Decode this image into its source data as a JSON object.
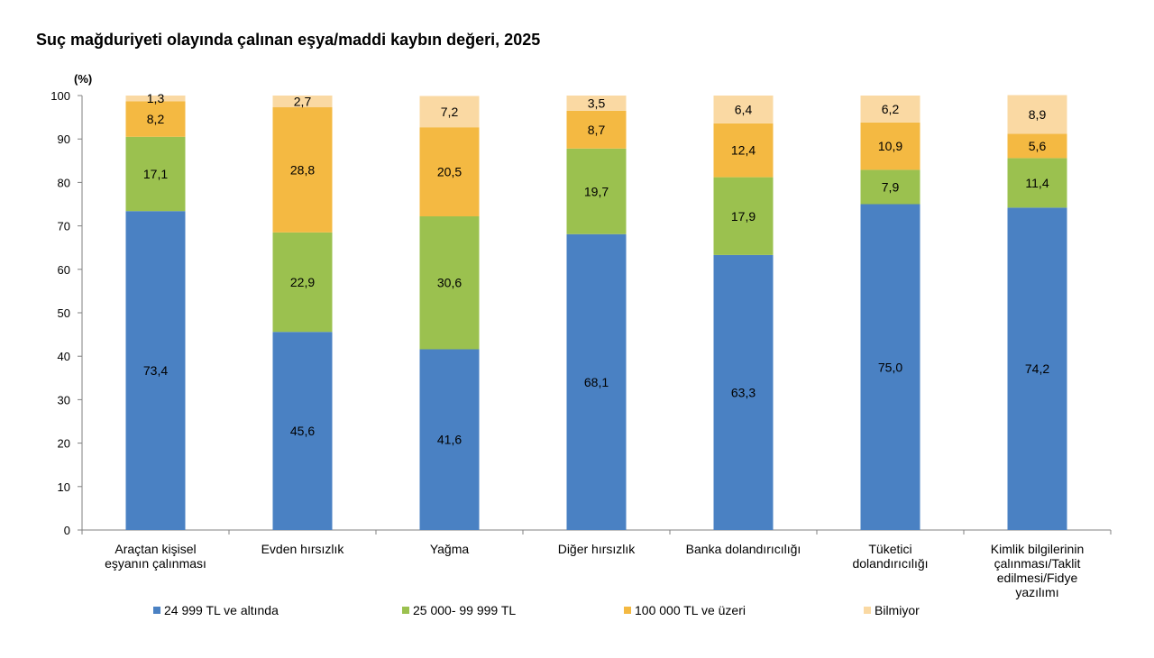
{
  "title": "Suç mağduriyeti olayında çalınan eşya/maddi kaybın değeri, 2025",
  "chart_data": {
    "type": "bar",
    "stacked": true,
    "title": "Suç mağduriyeti olayında çalınan eşya/maddi kaybın değeri, 2025",
    "ylabel": "(%)",
    "ylim": [
      0,
      100
    ],
    "yticks": [
      0,
      10,
      20,
      30,
      40,
      50,
      60,
      70,
      80,
      90,
      100
    ],
    "grid": false,
    "legend_position": "bottom",
    "categories": [
      [
        "Araçtan kişisel",
        "eşyanın çalınması"
      ],
      [
        "Evden hırsızlık"
      ],
      [
        "Yağma"
      ],
      [
        "Diğer hırsızlık"
      ],
      [
        "Banka dolandırıcılığı"
      ],
      [
        "Tüketici",
        "dolandırıcılığı"
      ],
      [
        "Kimlik bilgilerinin",
        "çalınması/Taklit",
        "edilmesi/Fidye",
        "yazılımı"
      ]
    ],
    "series": [
      {
        "name": "24 999 TL ve altında",
        "color": "#4a81c3",
        "values": [
          73.4,
          45.6,
          41.6,
          68.1,
          63.3,
          75.0,
          74.2
        ],
        "labels": [
          "73,4",
          "45,6",
          "41,6",
          "68,1",
          "63,3",
          "75,0",
          "74,2"
        ]
      },
      {
        "name": "25 000- 99 999 TL",
        "color": "#9bc14f",
        "values": [
          17.1,
          22.9,
          30.6,
          19.7,
          17.9,
          7.9,
          11.4
        ],
        "labels": [
          "17,1",
          "22,9",
          "30,6",
          "19,7",
          "17,9",
          "7,9",
          "11,4"
        ]
      },
      {
        "name": "100 000 TL ve üzeri",
        "color": "#f4b942",
        "values": [
          8.2,
          28.8,
          20.5,
          8.7,
          12.4,
          10.9,
          5.6
        ],
        "labels": [
          "8,2",
          "28,8",
          "20,5",
          "8,7",
          "12,4",
          "10,9",
          "5,6"
        ]
      },
      {
        "name": "Bilmiyor",
        "color": "#fad9a3",
        "values": [
          1.3,
          2.7,
          7.2,
          3.5,
          6.4,
          6.2,
          8.9
        ],
        "labels": [
          "1,3",
          "2,7",
          "7,2",
          "3,5",
          "6,4",
          "6,2",
          "8,9"
        ]
      }
    ]
  }
}
